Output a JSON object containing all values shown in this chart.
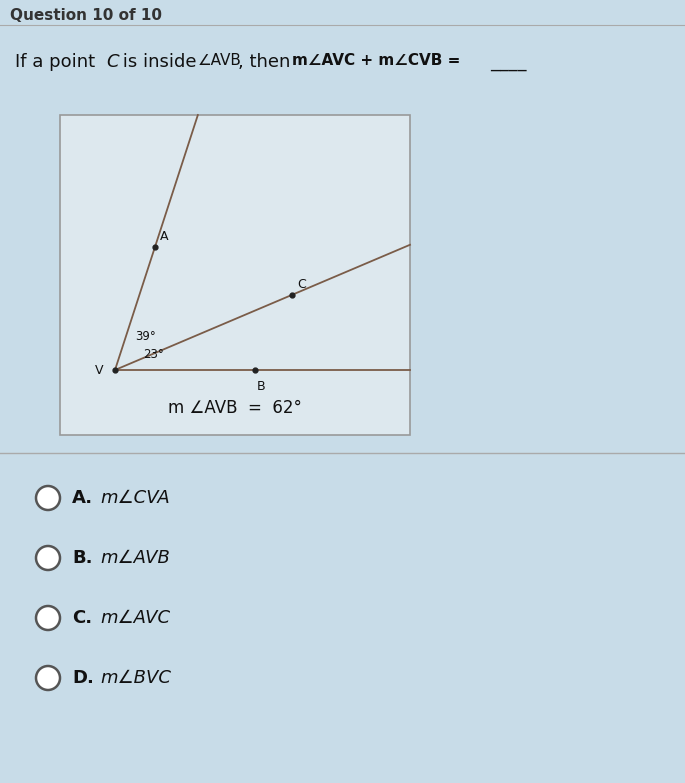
{
  "page_bg": "#c8dce8",
  "header_text": "Question 10 of 10",
  "question_line": "If a point C is inside ∠AVB, then m∠AVC + m∠CVB = ____",
  "diagram_label_bottom": "m ∠AVB  =  62°",
  "angle1_label": "39°",
  "angle2_label": "23°",
  "options": [
    {
      "label": "A.",
      "text": "m∠CVA"
    },
    {
      "label": "B.",
      "text": "m∠AVB"
    },
    {
      "label": "C.",
      "text": "m∠AVC"
    },
    {
      "label": "D.",
      "text": "m∠BVC"
    }
  ],
  "line_color": "#7a5c48",
  "dot_color": "#222222",
  "box_bg": "#dde8ee",
  "box_border": "#999999",
  "separator_color": "#aaaaaa",
  "text_color": "#111111",
  "header_color": "#333333",
  "circle_color": "#555555"
}
